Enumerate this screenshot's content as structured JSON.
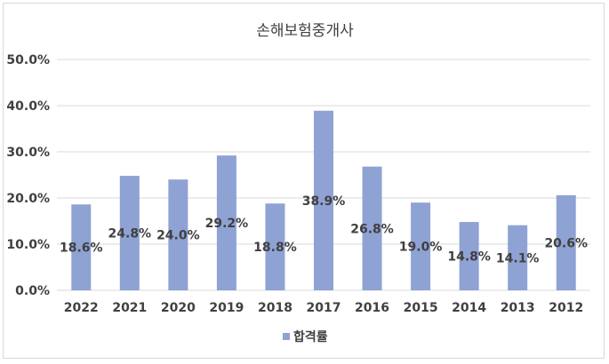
{
  "chart_data": {
    "type": "bar",
    "title": "손해보험중개사",
    "categories": [
      "2022",
      "2021",
      "2020",
      "2019",
      "2018",
      "2017",
      "2016",
      "2015",
      "2014",
      "2013",
      "2012"
    ],
    "series": [
      {
        "name": "합격률",
        "values": [
          18.6,
          24.8,
          24.0,
          29.2,
          18.8,
          38.9,
          26.8,
          19.0,
          14.8,
          14.1,
          20.6
        ],
        "labels": [
          "18.6%",
          "24.8%",
          "24.0%",
          "29.2%",
          "18.8%",
          "38.9%",
          "26.8%",
          "19.0%",
          "14.8%",
          "14.1%",
          "20.6%"
        ],
        "color": "#8fa2d4"
      }
    ],
    "ylim": [
      0,
      50
    ],
    "yticks": [
      0,
      10,
      20,
      30,
      40,
      50
    ],
    "ytick_labels": [
      "0.0%",
      "10.0%",
      "20.0%",
      "30.0%",
      "40.0%",
      "50.0%"
    ],
    "xlabel": "",
    "ylabel": "",
    "grid": true,
    "legend_position": "bottom",
    "gridline_color": "#d9d9d9"
  }
}
